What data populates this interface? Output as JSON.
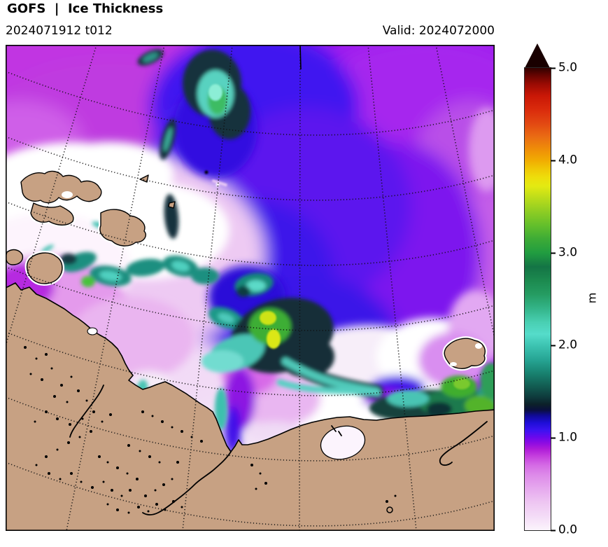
{
  "header": {
    "title": "GOFS  |  Ice Thickness",
    "run_label": "2024071912 t012",
    "valid_label": "Valid: 2024072000"
  },
  "colorbar": {
    "unit": "m",
    "min": 0.0,
    "max": 5.0,
    "ticks": [
      "5.0",
      "4.0",
      "3.0",
      "2.0",
      "1.0",
      "0.0"
    ],
    "extend_above": true,
    "extend_color": "#190000",
    "gradient_stops": [
      {
        "value": 0.0,
        "color": "#fbf4fc"
      },
      {
        "value": 0.15,
        "color": "#f4dcf7"
      },
      {
        "value": 0.3,
        "color": "#eec6f2"
      },
      {
        "value": 0.45,
        "color": "#e6a9ee"
      },
      {
        "value": 0.6,
        "color": "#dd8ae9"
      },
      {
        "value": 0.7,
        "color": "#d56ce5"
      },
      {
        "value": 0.8,
        "color": "#c540de"
      },
      {
        "value": 0.88,
        "color": "#ae1bd8"
      },
      {
        "value": 0.94,
        "color": "#8f0ce2"
      },
      {
        "value": 1.0,
        "color": "#6d08ec"
      },
      {
        "value": 1.08,
        "color": "#3d12f1"
      },
      {
        "value": 1.16,
        "color": "#1f0ed8"
      },
      {
        "value": 1.24,
        "color": "#100a96"
      },
      {
        "value": 1.3,
        "color": "#0a0f3e"
      },
      {
        "value": 1.36,
        "color": "#0c2029"
      },
      {
        "value": 1.44,
        "color": "#0e3a3c"
      },
      {
        "value": 1.55,
        "color": "#125a50"
      },
      {
        "value": 1.7,
        "color": "#188270"
      },
      {
        "value": 1.85,
        "color": "#27a695"
      },
      {
        "value": 2.0,
        "color": "#3dc4b2"
      },
      {
        "value": 2.12,
        "color": "#55dcca"
      },
      {
        "value": 2.25,
        "color": "#49cfb2"
      },
      {
        "value": 2.4,
        "color": "#33b488"
      },
      {
        "value": 2.55,
        "color": "#259c62"
      },
      {
        "value": 2.7,
        "color": "#1c8a4f"
      },
      {
        "value": 2.85,
        "color": "#147445"
      },
      {
        "value": 3.0,
        "color": "#219d40"
      },
      {
        "value": 3.15,
        "color": "#3dab36"
      },
      {
        "value": 3.3,
        "color": "#64bf2b"
      },
      {
        "value": 3.45,
        "color": "#8fcd23"
      },
      {
        "value": 3.6,
        "color": "#bddd1a"
      },
      {
        "value": 3.72,
        "color": "#e3ea12"
      },
      {
        "value": 3.82,
        "color": "#eedd0b"
      },
      {
        "value": 3.92,
        "color": "#f0c405"
      },
      {
        "value": 4.0,
        "color": "#f1ac02"
      },
      {
        "value": 4.12,
        "color": "#ef8e08"
      },
      {
        "value": 4.25,
        "color": "#ea6d13"
      },
      {
        "value": 4.4,
        "color": "#e24812"
      },
      {
        "value": 4.55,
        "color": "#da2b0c"
      },
      {
        "value": 4.7,
        "color": "#c91706"
      },
      {
        "value": 4.82,
        "color": "#9d0b03"
      },
      {
        "value": 4.92,
        "color": "#660401"
      },
      {
        "value": 5.0,
        "color": "#300100"
      }
    ]
  },
  "palette": {
    "land": "#c7a183",
    "coastline": "#000000",
    "open_water": "#ffffff",
    "thin_ice_purple": "#9d1bee",
    "mid_ice_blue": "#4016f0",
    "thick_ice_teal": "#15323d",
    "thickest_core_yellow": "#cde318"
  }
}
